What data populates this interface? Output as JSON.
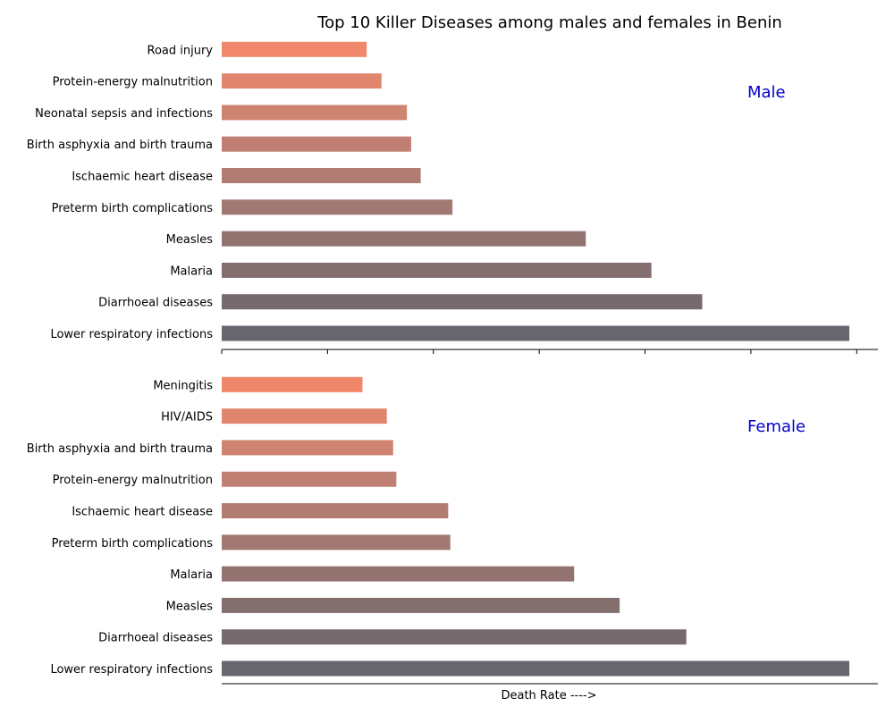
{
  "chart_data": {
    "type": "bar",
    "orientation": "horizontal",
    "title": "Top 10 Killer Diseases among males and females in Benin",
    "xlabel": "Death Rate ---->",
    "tick_labels_visible": false,
    "xlim": [
      0,
      62
    ],
    "panels": [
      {
        "label": "Male",
        "categories": [
          "Lower respiratory infections",
          "Diarrhoeal diseases",
          "Malaria",
          "Measles",
          "Preterm birth complications",
          "Ischaemic heart disease",
          "Birth asphyxia and birth trauma",
          "Neonatal sepsis and infections",
          "Protein-energy malnutrition",
          "Road injury"
        ],
        "values": [
          59.3,
          45.4,
          40.6,
          34.4,
          21.8,
          18.8,
          17.9,
          17.5,
          15.1,
          13.7
        ],
        "colors": [
          "#67656d",
          "#766a6e",
          "#846f6f",
          "#937370",
          "#a27872",
          "#b17c72",
          "#c07f72",
          "#cf8471",
          "#e0866f",
          "#f0876b"
        ]
      },
      {
        "label": "Female",
        "categories": [
          "Lower respiratory infections",
          "Diarrhoeal diseases",
          "Measles",
          "Malaria",
          "Preterm birth complications",
          "Ischaemic heart disease",
          "Protein-energy malnutrition",
          "Birth asphyxia and birth trauma",
          "HIV/AIDS",
          "Meningitis"
        ],
        "values": [
          59.3,
          43.9,
          37.6,
          33.3,
          21.6,
          21.4,
          16.5,
          16.2,
          15.6,
          13.3
        ],
        "colors": [
          "#67656d",
          "#766a6e",
          "#846f6f",
          "#937370",
          "#a27872",
          "#b17c72",
          "#c07f72",
          "#cf8471",
          "#e0866f",
          "#f0876b"
        ]
      }
    ]
  }
}
